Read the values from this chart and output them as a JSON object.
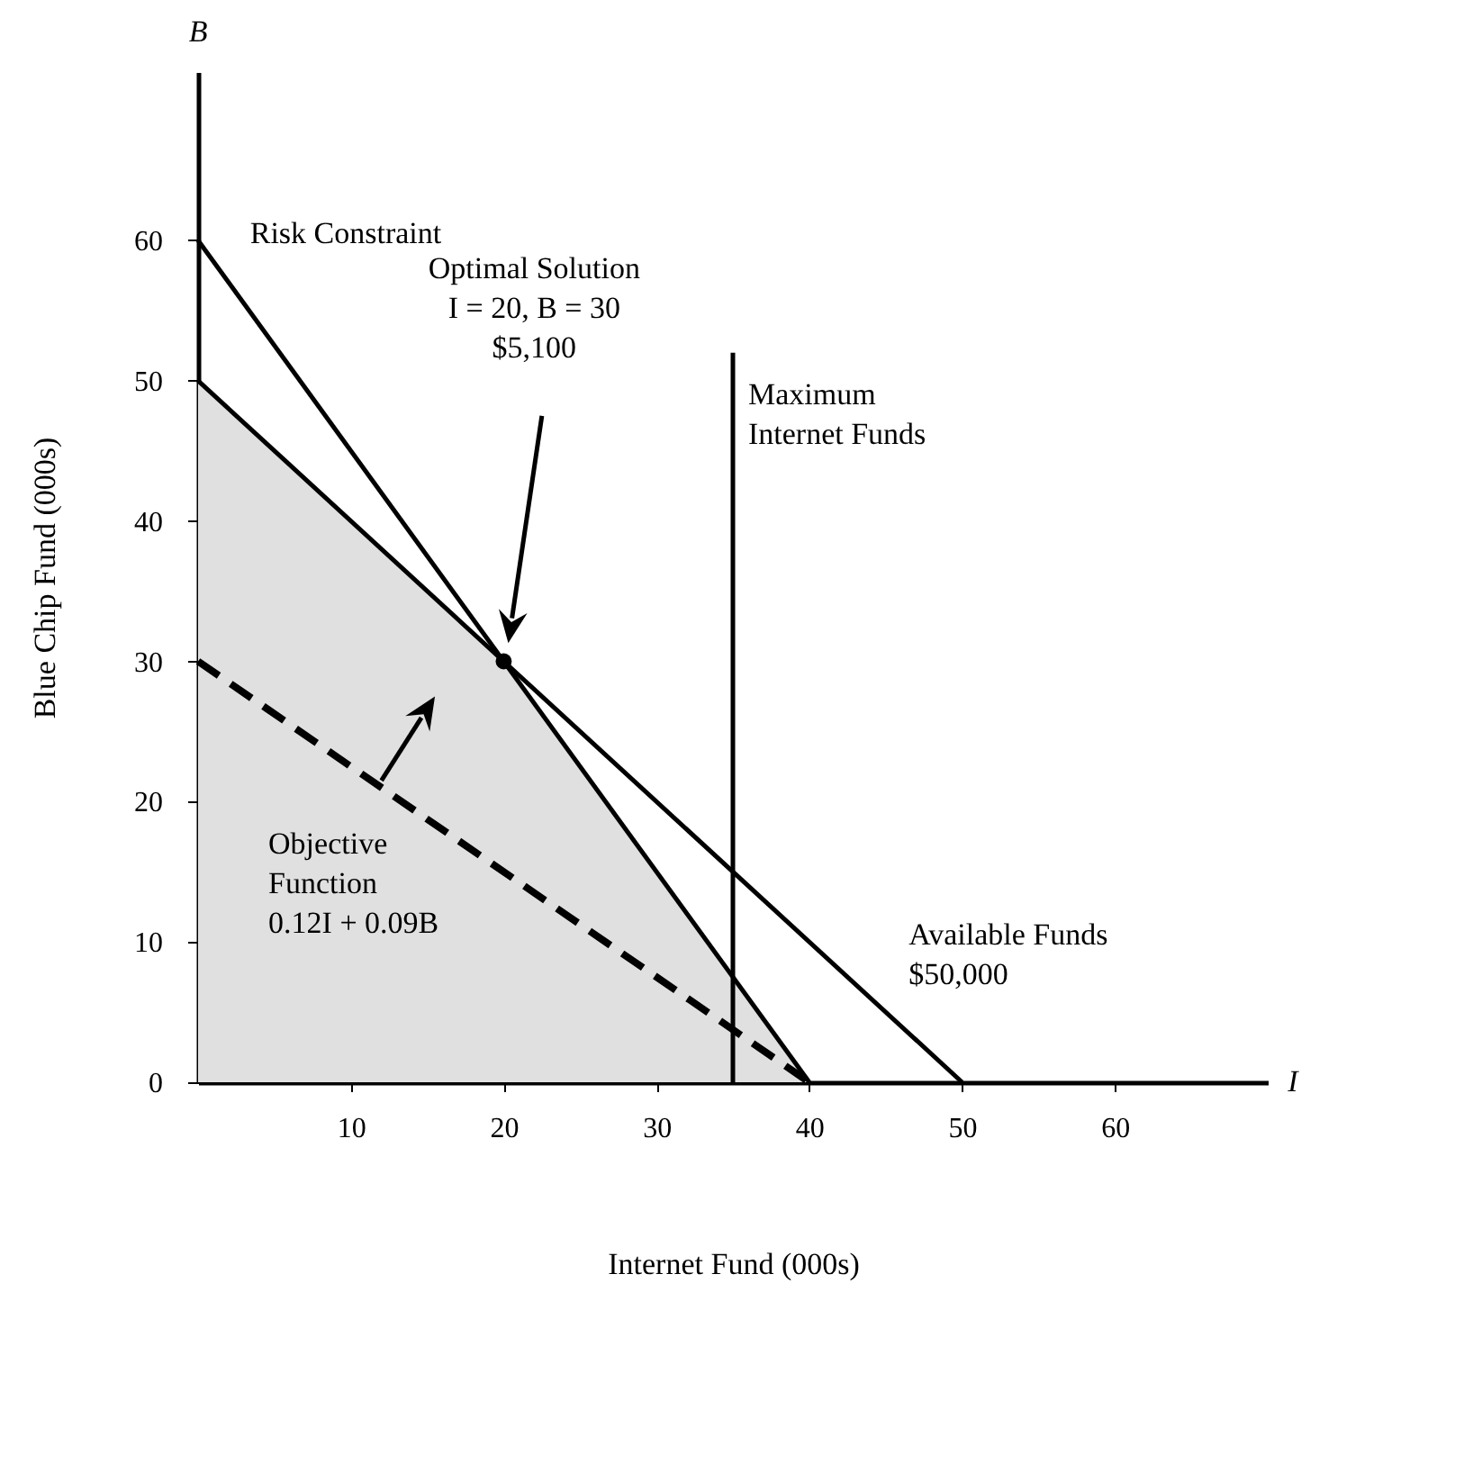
{
  "chart_data": {
    "type": "line",
    "xlabel": "Internet Fund (000s)",
    "ylabel": "Blue Chip Fund (000s)",
    "xlim": [
      0,
      70
    ],
    "ylim": [
      0,
      72
    ],
    "xticks": [
      10,
      20,
      30,
      40,
      50,
      60
    ],
    "yticks": [
      0,
      10,
      20,
      30,
      40,
      50,
      60
    ],
    "annotations": [
      "B",
      "I",
      "Optimal Solution\nI = 20, B = 30\n$5,100"
    ],
    "series": [
      {
        "type": "area",
        "color": "#e0e0e0",
        "x": [
          0,
          20,
          40
        ],
        "values": [
          50,
          30,
          0
        ]
      },
      {
        "name": "Risk Constraint",
        "color": "#000000",
        "x": [
          0,
          40
        ],
        "values": [
          60,
          0
        ],
        "line_style": "solid"
      },
      {
        "name": "Available Funds\n$50,000",
        "color": "#000000",
        "x": [
          0,
          50
        ],
        "values": [
          50,
          0
        ],
        "line_style": "solid"
      },
      {
        "name": "Maximum\nInternet Funds",
        "color": "#000000",
        "x": [
          35,
          35
        ],
        "values": [
          0,
          52
        ],
        "line_style": "solid"
      },
      {
        "name": "Objective\nFunction\n0.12I + 0.09B",
        "color": "#000000",
        "x": [
          0,
          40
        ],
        "values": [
          30,
          0
        ],
        "line_style": "dashed"
      },
      {
        "type": "scatter",
        "color": "#000000",
        "x": [
          20
        ],
        "values": [
          30
        ],
        "marker": "circle"
      }
    ]
  }
}
